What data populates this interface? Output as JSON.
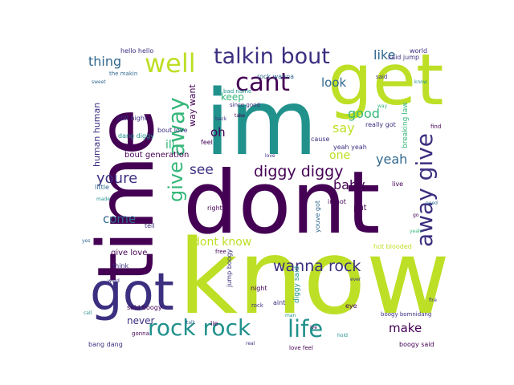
{
  "colors": {
    "dark_purple": "#440154",
    "indigo": "#3b2f80",
    "blue": "#31688e",
    "teal": "#21918c",
    "green": "#35b779",
    "lime": "#bddf26"
  },
  "words": {
    "know": "know",
    "dont": "dont",
    "im": "im",
    "time": "time",
    "get": "get",
    "got": "got",
    "well": "well",
    "talkin_bout": "talkin bout",
    "cant": "cant",
    "away_give_v": "away give",
    "away_v": "away",
    "give_v": "give",
    "rock_rock": "rock rock",
    "life": "life",
    "diggy_diggy": "diggy diggy",
    "wanna_rock": "wanna rock",
    "dont_know": "dont know",
    "youre": "youre",
    "thing": "thing",
    "like": "like",
    "look": "look",
    "say": "say",
    "good": "good",
    "baby": "baby",
    "yeah": "yeah",
    "one": "one",
    "come": "come",
    "see": "see",
    "oh": "oh",
    "ill": "ill",
    "make": "make",
    "never": "never",
    "keep": "keep",
    "human_human": "human human",
    "way_want": "way want",
    "bout_generation": "bout generation",
    "give_love": "give love",
    "rock_wanna": "rock wanna",
    "hello_hello": "hello hello",
    "said_jump": "said jump",
    "still_night": "still night",
    "dang_diggy": "dang diggy",
    "breaking_law": "breaking law",
    "think": "think",
    "little": "little",
    "right": "right",
    "eye": "eye",
    "aint": "aint",
    "night": "night",
    "said_boogy": "said boogy",
    "bang_dang": "bang dang",
    "boogy_said": "boogy said",
    "hot_blooded": "hot blooded",
    "jump_boogy": "jump boogy",
    "feel": "feel",
    "put": "put",
    "really_got": "really got",
    "youve_got": "youve got",
    "diggy_said": "diggy said",
    "in_hot": "in hot",
    "yeah_yeah": "yeah yeah",
    "cause": "cause",
    "bout_love": "bout love",
    "bad_name": "bad name",
    "live": "live",
    "world": "world",
    "find": "find",
    "tell": "tell",
    "gonna": "gonna",
    "lie": "lie",
    "rock": "rock",
    "love_feel": "love feel",
    "said": "said",
    "the_makin": "the makin",
    "since_good": "since good",
    "boogy_bomnidang": "boogy bomnidang",
    "sweet": "sweet",
    "made": "made",
    "need": "need",
    "go": "go",
    "yes": "yes",
    "love": "love",
    "man": "man",
    "back": "back",
    "take": "take",
    "know_s": "know",
    "yeah_s": "yeah",
    "free": "free",
    "word": "word",
    "ever": "ever",
    "ive": "ive",
    "hold": "hold",
    "talk": "talk",
    "fire": "fire",
    "call": "call",
    "real": "real",
    "way": "way"
  }
}
